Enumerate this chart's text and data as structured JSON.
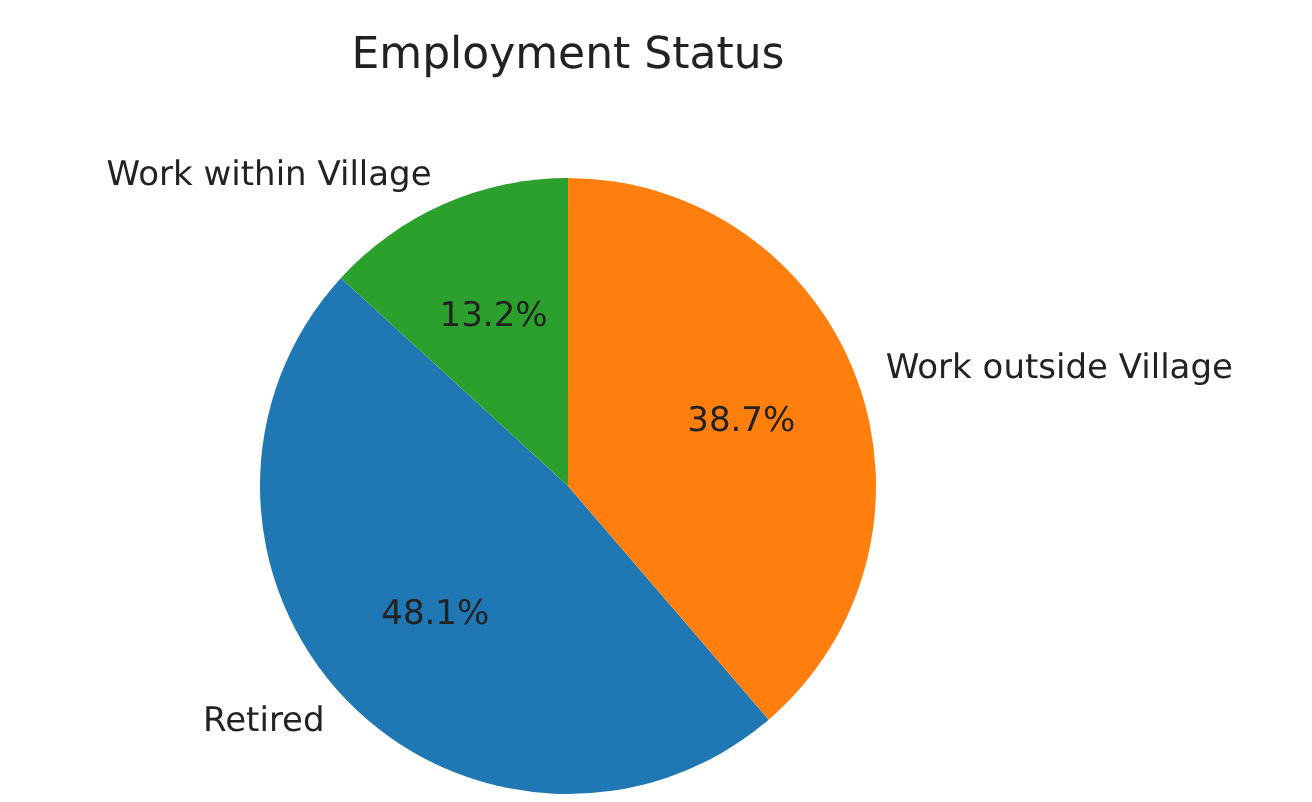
{
  "chart_data": {
    "type": "pie",
    "title": "Employment Status",
    "categories": [
      "Retired",
      "Work outside Village",
      "Work within Village"
    ],
    "values": [
      48.1,
      38.7,
      13.2
    ],
    "colors": [
      "#1f77b4",
      "#ff7f0e",
      "#2ca02c"
    ],
    "value_labels": [
      "48.1%",
      "38.7%",
      "13.2%"
    ],
    "legend": false
  }
}
